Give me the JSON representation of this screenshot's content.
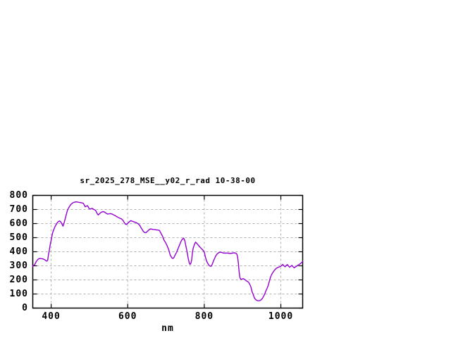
{
  "window": {
    "background_color": "#ffffff"
  },
  "chart_data": {
    "type": "line",
    "title": "sr_2025_278_MSE__y02_r_rad 10-38-00",
    "xlabel": "nm",
    "ylabel": "",
    "xlim": [
      352,
      1057
    ],
    "ylim": [
      0,
      800
    ],
    "x_ticks": [
      400,
      600,
      800,
      1000
    ],
    "y_ticks": [
      0,
      100,
      200,
      300,
      400,
      500,
      600,
      700,
      800
    ],
    "grid": true,
    "grid_style": "dashed",
    "legend_position": "none",
    "line_color": "#9400d3",
    "grid_color": "#b0b0b0",
    "axis_color": "#000000",
    "series": [
      {
        "name": "sr_2025_278_MSE__y02_r_rad",
        "x": [
          352,
          353,
          357,
          361,
          365,
          369,
          374,
          379,
          383,
          386,
          389,
          391,
          393,
          395,
          397,
          399,
          401,
          404,
          407,
          410,
          413,
          416,
          419,
          422,
          425,
          428,
          431,
          434,
          437,
          440,
          443,
          446,
          449,
          452,
          456,
          460,
          464,
          469,
          474,
          479,
          484,
          487,
          489,
          492,
          495,
          499,
          503,
          507,
          511,
          516,
          520,
          523,
          527,
          531,
          535,
          539,
          543,
          547,
          551,
          555,
          559,
          563,
          567,
          571,
          575,
          579,
          583,
          587,
          591,
          594,
          597,
          600,
          604,
          608,
          612,
          616,
          620,
          624,
          628,
          632,
          635,
          638,
          641,
          644,
          647,
          650,
          653,
          656,
          659,
          663,
          667,
          671,
          675,
          679,
          683,
          687,
          691,
          695,
          699,
          703,
          707,
          711,
          715,
          718,
          721,
          724,
          728,
          732,
          736,
          740,
          743,
          746,
          749,
          752,
          755,
          758,
          761,
          763,
          765,
          767,
          769,
          771,
          774,
          777,
          780,
          784,
          788,
          792,
          796,
          800,
          803,
          806,
          809,
          812,
          815,
          818,
          821,
          824,
          827,
          830,
          833,
          836,
          840,
          844,
          848,
          853,
          858,
          863,
          868,
          873,
          878,
          882,
          885,
          887,
          889,
          891,
          893,
          895,
          898,
          901,
          904,
          907,
          910,
          913,
          916,
          919,
          922,
          925,
          928,
          931,
          934,
          937,
          940,
          943,
          946,
          949,
          952,
          955,
          958,
          961,
          964,
          967,
          970,
          973,
          976,
          979,
          982,
          985,
          988,
          991,
          994,
          997,
          1000,
          1003,
          1005,
          1008,
          1011,
          1014,
          1017,
          1020,
          1023,
          1026,
          1029,
          1032,
          1035,
          1038,
          1041,
          1044,
          1048,
          1051,
          1054,
          1057
        ],
        "y": [
          295,
          300,
          308,
          330,
          345,
          352,
          351,
          349,
          344,
          337,
          333,
          341,
          380,
          408,
          440,
          468,
          495,
          535,
          558,
          578,
          592,
          606,
          614,
          619,
          612,
          598,
          582,
          605,
          638,
          668,
          697,
          713,
          726,
          737,
          746,
          751,
          754,
          753,
          750,
          748,
          744,
          730,
          719,
          724,
          727,
          707,
          703,
          708,
          701,
          694,
          672,
          661,
          672,
          680,
          685,
          683,
          674,
          668,
          669,
          671,
          668,
          662,
          657,
          650,
          644,
          639,
          634,
          625,
          608,
          596,
          593,
          601,
          612,
          621,
          617,
          612,
          609,
          604,
          597,
          585,
          570,
          557,
          544,
          537,
          535,
          541,
          549,
          557,
          562,
          560,
          558,
          557,
          555,
          554,
          551,
          530,
          510,
          482,
          465,
          442,
          415,
          377,
          358,
          352,
          360,
          378,
          398,
          425,
          452,
          478,
          490,
          497,
          480,
          440,
          402,
          352,
          318,
          310,
          318,
          342,
          390,
          425,
          450,
          468,
          461,
          448,
          435,
          424,
          413,
          398,
          362,
          335,
          318,
          305,
          298,
          297,
          312,
          334,
          352,
          371,
          382,
          390,
          396,
          397,
          392,
          390,
          391,
          390,
          388,
          390,
          392,
          390,
          383,
          365,
          322,
          260,
          218,
          206,
          204,
          209,
          206,
          200,
          193,
          189,
          183,
          168,
          148,
          115,
          95,
          72,
          61,
          55,
          52,
          52,
          54,
          60,
          70,
          84,
          100,
          122,
          140,
          160,
          190,
          220,
          238,
          252,
          264,
          274,
          282,
          287,
          290,
          293,
          297,
          305,
          310,
          300,
          293,
          302,
          309,
          299,
          290,
          297,
          303,
          293,
          286,
          292,
          297,
          303,
          310,
          315,
          323,
          330
        ]
      }
    ]
  }
}
